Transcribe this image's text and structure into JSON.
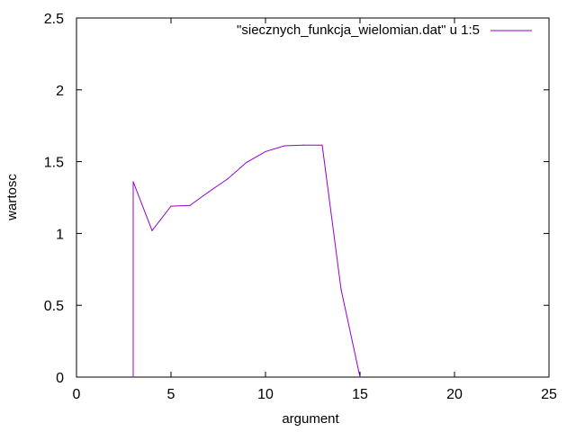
{
  "chart_data": {
    "type": "line",
    "xlabel": "argument",
    "ylabel": "wartosc",
    "xlim": [
      0,
      25
    ],
    "ylim": [
      0,
      2.5
    ],
    "xticks": [
      "0",
      "5",
      "10",
      "15",
      "20",
      "25"
    ],
    "yticks": [
      "0",
      "0.5",
      "1",
      "1.5",
      "2",
      "2.5"
    ],
    "grid": false,
    "legend_position": "top-right",
    "series": [
      {
        "name": "\"siecznych_funkcja_wielomian.dat\" u 1:5",
        "color": "#9400D3",
        "x": [
          3,
          3,
          4,
          5,
          6,
          7,
          8,
          9,
          10,
          11,
          12,
          13,
          14,
          15
        ],
        "y": [
          0,
          1.36,
          1.02,
          1.19,
          1.195,
          1.29,
          1.38,
          1.495,
          1.57,
          1.61,
          1.615,
          1.615,
          0.61,
          0
        ]
      }
    ]
  }
}
